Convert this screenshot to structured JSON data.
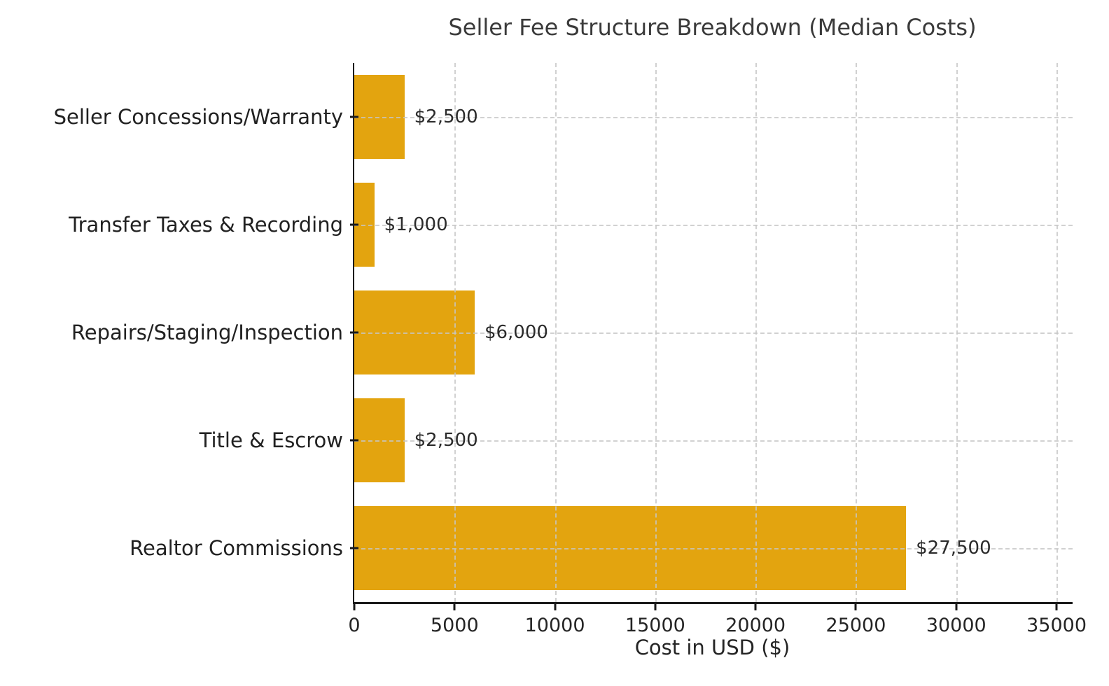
{
  "chart_data": {
    "type": "bar",
    "orientation": "horizontal",
    "title": "Seller Fee Structure Breakdown (Median Costs)",
    "xlabel": "Cost in USD ($)",
    "ylabel": "",
    "categories_top_to_bottom": [
      "Seller Concessions/Warranty",
      "Transfer Taxes & Recording",
      "Repairs/Staging/Inspection",
      "Title & Escrow",
      "Realtor Commissions"
    ],
    "values": [
      2500,
      1000,
      6000,
      2500,
      27500
    ],
    "value_labels": [
      "$2,500",
      "$1,000",
      "$6,000",
      "$2,500",
      "$27,500"
    ],
    "xlim": [
      0,
      35800
    ],
    "xticks": [
      0,
      5000,
      10000,
      15000,
      20000,
      25000,
      30000,
      35000
    ],
    "xtick_labels": [
      "0",
      "5000",
      "10000",
      "15000",
      "20000",
      "25000",
      "30000",
      "35000"
    ],
    "grid": {
      "style": "dashed",
      "axes": "both",
      "color": "#c6c6c6",
      "drawn_over_bars": true
    },
    "legend": null,
    "spines_visible": [
      "left",
      "bottom"
    ],
    "colors": {
      "bar": "#E3A40F",
      "spine": "#1a1a1a",
      "title_text": "#3a3a3a",
      "tick_text": "#252525",
      "label_text": "#212121",
      "value_text": "#2b2b2b",
      "background": "#ffffff"
    }
  }
}
